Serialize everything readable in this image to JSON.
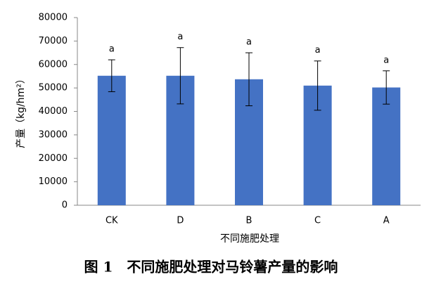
{
  "chart_data": {
    "type": "bar",
    "title": "图 1　不同施肥处理对马铃薯产量的影响",
    "x_label": "不同施肥处理",
    "y_label": "产量（kg/hm²）",
    "categories": [
      "CK",
      "D",
      "B",
      "C",
      "A"
    ],
    "values": [
      55200,
      55200,
      53700,
      51000,
      50200
    ],
    "errors": [
      6800,
      12000,
      11300,
      10500,
      7100
    ],
    "significance_labels": [
      "a",
      "a",
      "a",
      "a",
      "a"
    ],
    "color": "#4472c4",
    "ylim": [
      0,
      80000
    ],
    "yticks": [
      0,
      10000,
      20000,
      30000,
      40000,
      50000,
      60000,
      70000,
      80000
    ],
    "grid": false
  }
}
